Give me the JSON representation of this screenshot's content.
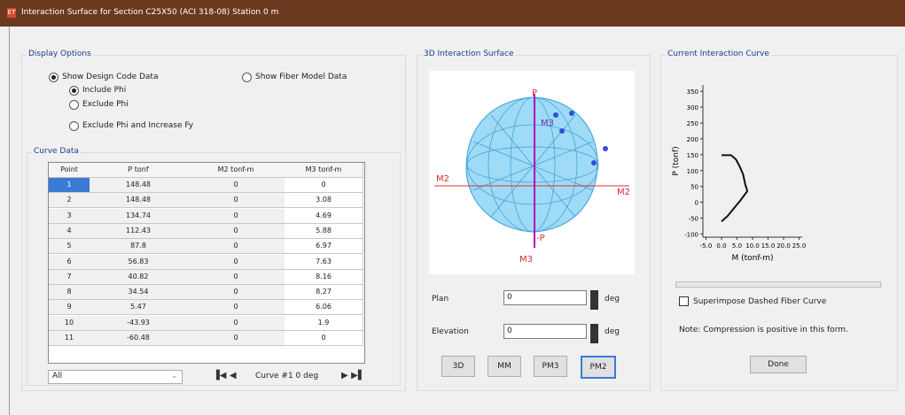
{
  "window": {
    "title": "Interaction Surface for Section C25X50 (ACI 318-08)  Station 0 m"
  },
  "display_options": {
    "title": "Display Options",
    "show_design_code_data": "Show Design Code Data",
    "include_phi": "Include Phi",
    "exclude_phi": "Exclude Phi",
    "exclude_phi_increase_fy": "Exclude Phi and Increase Fy",
    "show_fiber_model_data": "Show Fiber Model Data"
  },
  "curve_data": {
    "title": "Curve Data",
    "columns": [
      "Point",
      "P tonf",
      "M2 tonf-m",
      "M3 tonf-m"
    ],
    "rows": [
      [
        1,
        148.48,
        0,
        0
      ],
      [
        2,
        148.48,
        0,
        3.08
      ],
      [
        3,
        134.74,
        0,
        4.69
      ],
      [
        4,
        112.43,
        0,
        5.88
      ],
      [
        5,
        87.8,
        0,
        6.97
      ],
      [
        6,
        56.83,
        0,
        7.63
      ],
      [
        7,
        40.82,
        0,
        8.16
      ],
      [
        8,
        34.54,
        0,
        8.27
      ],
      [
        9,
        5.47,
        0,
        6.06
      ],
      [
        10,
        -43.93,
        0,
        1.9
      ],
      [
        11,
        -60.48,
        0,
        0
      ]
    ],
    "filter": "All",
    "curve_label": "Curve #1  0 deg"
  },
  "surface": {
    "title": "3D Interaction Surface",
    "axis_labels": [
      "P",
      "M3",
      "M2",
      "M2",
      "-P",
      "M3"
    ],
    "plan_label": "Plan",
    "plan_value": "0",
    "elevation_label": "Elevation",
    "elevation_value": "0",
    "unit": "deg",
    "buttons": [
      "3D",
      "MM",
      "PM3",
      "PM2"
    ]
  },
  "current_curve": {
    "title": "Current Interaction Curve",
    "chart": {
      "type": "line",
      "x_label": "M (tonf-m)",
      "y_label": "P (tonf)",
      "xlim": [
        -6,
        26
      ],
      "ylim": [
        -110,
        370
      ],
      "xticks": [
        {
          "value": -5,
          "label": "-5.0"
        },
        {
          "value": 0,
          "label": "0.0"
        },
        {
          "value": 5,
          "label": "5.0"
        },
        {
          "value": 10,
          "label": "10.0"
        },
        {
          "value": 15,
          "label": "15.0"
        },
        {
          "value": 20,
          "label": "20.0"
        },
        {
          "value": 25,
          "label": "25.0"
        }
      ],
      "yticks": [
        350,
        300,
        250,
        200,
        150,
        100,
        50,
        0,
        -50,
        -100
      ]
    },
    "superimpose": "Superimpose Dashed Fiber Curve",
    "note": "Note:  Compression is positive in this form.",
    "done": "Done"
  }
}
